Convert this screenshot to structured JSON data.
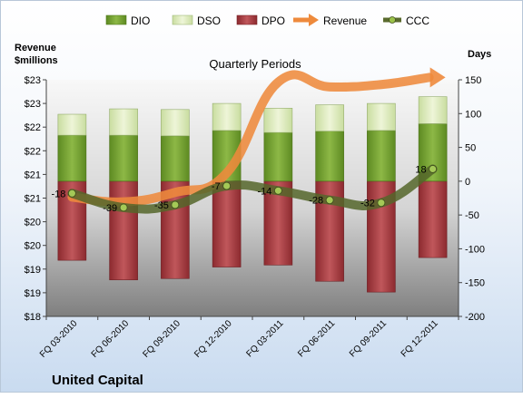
{
  "chart_data": {
    "type": "bar",
    "title": "Quarterly Periods",
    "company": "United Capital",
    "left_axis": {
      "label_line1": "Revenue",
      "label_line2": "$millions",
      "ylim": [
        18,
        23
      ],
      "tick_values": [
        18,
        18.5,
        19,
        19.5,
        20,
        20.5,
        21,
        21.5,
        22,
        22.5,
        23
      ],
      "tick_labels": [
        "$18",
        "$19",
        "$19",
        "$20",
        "$20",
        "$21",
        "$21",
        "$22",
        "$22",
        "$23",
        "$23"
      ]
    },
    "right_axis": {
      "label": "Days",
      "ylim": [
        -200,
        150
      ],
      "tick_values": [
        -200,
        -150,
        -100,
        -50,
        0,
        50,
        100,
        150
      ],
      "tick_labels": [
        "-200",
        "-150",
        "-100",
        "-50",
        "0",
        "50",
        "100",
        "150"
      ]
    },
    "categories": [
      "FQ 03-2010",
      "FQ 06-2010",
      "FQ 09-2010",
      "FQ 12-2010",
      "FQ 03-2011",
      "FQ 06-2011",
      "FQ 09-2011",
      "FQ 12-2011"
    ],
    "series": [
      {
        "name": "DIO",
        "axis": "right",
        "values": [
          68,
          68,
          67,
          75,
          72,
          74,
          75,
          85
        ],
        "color": "#6f9a2c"
      },
      {
        "name": "DSO",
        "axis": "right",
        "values": [
          31,
          39,
          39,
          40,
          36,
          39,
          40,
          40
        ],
        "color": "#d8e8b2"
      },
      {
        "name": "DPO",
        "axis": "right",
        "values": [
          117,
          146,
          144,
          127,
          124,
          148,
          164,
          113
        ],
        "color": "#a63a3e"
      },
      {
        "name": "Revenue",
        "axis": "left",
        "values": [
          20.52,
          20.42,
          20.62,
          21.03,
          22.95,
          22.85,
          22.9,
          23.05
        ],
        "color": "#ee8a3c"
      },
      {
        "name": "CCC",
        "axis": "right",
        "values": [
          -18,
          -39,
          -35,
          -7,
          -14,
          -28,
          -32,
          18
        ],
        "color": "#5a6b2e"
      }
    ],
    "data_labels": [
      "-18",
      "-39",
      "-35",
      "-7",
      "-14",
      "-28",
      "-32",
      "18"
    ],
    "legend": {
      "position": "top",
      "items": [
        {
          "name": "DIO",
          "kind": "box",
          "color": "#6f9a2c"
        },
        {
          "name": "DSO",
          "kind": "box",
          "color": "#d8e8b2"
        },
        {
          "name": "DPO",
          "kind": "box",
          "color": "#a63a3e"
        },
        {
          "name": "Revenue",
          "kind": "arrow",
          "color": "#ee8a3c"
        },
        {
          "name": "CCC",
          "kind": "line-marker",
          "color": "#5a6b2e"
        }
      ]
    },
    "grid": false
  }
}
